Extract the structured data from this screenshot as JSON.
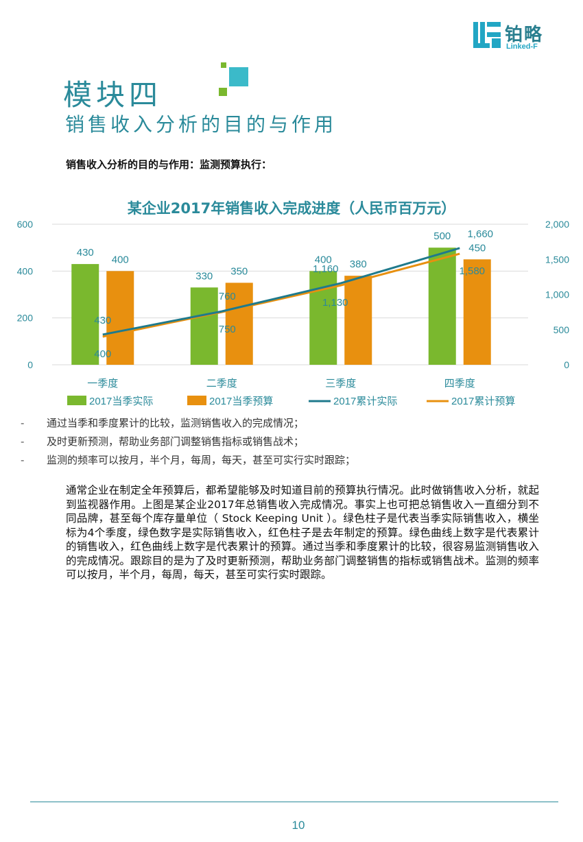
{
  "logo": {
    "cn": "铂略",
    "en": "Linked-F"
  },
  "module": {
    "title": "模块四",
    "subtitle": "销售收入分析的目的与作用"
  },
  "section_heading": "销售收入分析的目的与作用：监测预算执行：",
  "colors": {
    "teal": "#2a8a9a",
    "green": "#7ab82e",
    "orange": "#e8900f",
    "line_actual": "#1f7a8c",
    "line_budget": "#e8900f"
  },
  "chart_data": {
    "type": "bar",
    "title": "某企业2017年销售收入完成进度（人民币百万元）",
    "categories": [
      "一季度",
      "二季度",
      "三季度",
      "四季度"
    ],
    "series": [
      {
        "name": "2017当季实际",
        "kind": "bar",
        "axis": "left",
        "values": [
          430,
          330,
          400,
          500
        ]
      },
      {
        "name": "2017当季预算",
        "kind": "bar",
        "axis": "left",
        "values": [
          400,
          350,
          380,
          450
        ]
      },
      {
        "name": "2017累计实际",
        "kind": "line",
        "axis": "right",
        "values": [
          430,
          760,
          1160,
          1660
        ]
      },
      {
        "name": "2017累计预算",
        "kind": "line",
        "axis": "right",
        "values": [
          400,
          750,
          1130,
          1580
        ]
      }
    ],
    "left_axis": {
      "ylim": [
        0,
        600
      ],
      "ticks": [
        "0",
        "200",
        "400",
        "600"
      ]
    },
    "right_axis": {
      "ylim": [
        0,
        2000
      ],
      "ticks": [
        "0",
        "500",
        "1,000",
        "1,500",
        "2,000"
      ]
    },
    "data_labels": {
      "actual_bar": [
        "430",
        "330",
        "400",
        "500"
      ],
      "budget_bar": [
        "400",
        "350",
        "380",
        "450"
      ],
      "actual_line": [
        "430",
        "760",
        "1,160",
        "1,660"
      ],
      "budget_line": [
        "400",
        "750",
        "1,130",
        "1,580"
      ]
    },
    "grid": true,
    "legend": "bottom"
  },
  "bullets": [
    {
      "dash": "-",
      "text": "通过当季和季度累计的比较，监测销售收入的完成情况；"
    },
    {
      "dash": "-",
      "text": "及时更新预测，帮助业务部门调整销售指标或销售战术；"
    },
    {
      "dash": "-",
      "text": "监测的频率可以按月，半个月，每周，每天，甚至可实行实时跟踪；"
    }
  ],
  "paragraph": "通常企业在制定全年预算后，都希望能够及时知道目前的预算执行情况。此时做销售收入分析，就起到监视器作用。上图是某企业2017年总销售收入完成情况。事实上也可把总销售收入一直细分到不同品牌，甚至每个库存量单位（ Stock Keeping Unit ）。绿色柱子是代表当季实际销售收入，横坐标为4个季度，绿色数字是实际销售收入，红色柱子是去年制定的预算。绿色曲线上数字是代表累计的销售收入，红色曲线上数字是代表累计的预算。通过当季和季度累计的比较，很容易监测销售收入的完成情况。跟踪目的是为了及时更新预测，帮助业务部门调整销售的指标或销售战术。监测的频率可以按月，半个月，每周，每天，甚至可实行实时跟踪。",
  "page_number": "10"
}
